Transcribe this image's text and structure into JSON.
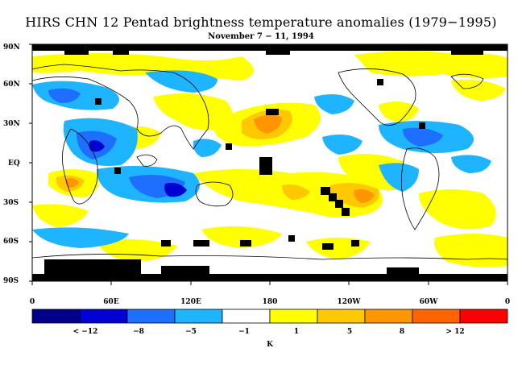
{
  "title": "HIRS CHN 12 Pentad brightness temperature anomalies (1979−1995)",
  "subtitle": "November 7 − 11, 1994",
  "map": {
    "y_axis_labels": [
      "90N",
      "60N",
      "30N",
      "EQ",
      "30S",
      "60S",
      "90S"
    ],
    "x_axis_labels": [
      "0",
      "60E",
      "120E",
      "180",
      "120W",
      "60W",
      "0"
    ]
  },
  "legend": {
    "colors": [
      "#00008b",
      "#0000d2",
      "#1e6eff",
      "#1eb4ff",
      "#ffffff",
      "#ffff00",
      "#ffc800",
      "#ff9600",
      "#ff6400",
      "#ff0000"
    ],
    "labels": [
      "< −12",
      "−8",
      "−5",
      "−1",
      "1",
      "5",
      "8",
      "> 12"
    ],
    "unit": "K"
  },
  "colors": {
    "missing": "#000000",
    "coastline": "#000000"
  }
}
